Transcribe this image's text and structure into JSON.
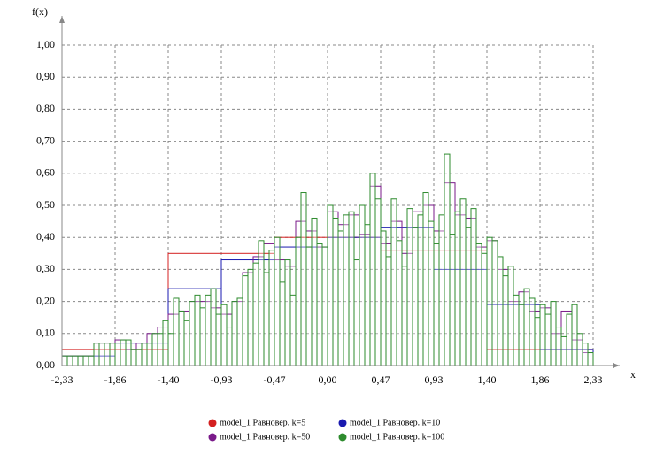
{
  "chart_data": {
    "type": "histogram",
    "y_label": "f(x)",
    "x_label": "x",
    "xlim": [
      -2.33,
      2.33
    ],
    "ylim": [
      0,
      1
    ],
    "xticks": [
      {
        "value": -2.33,
        "label": "-2,33"
      },
      {
        "value": -1.864,
        "label": "-1,86"
      },
      {
        "value": -1.398,
        "label": "-1,40"
      },
      {
        "value": -0.932,
        "label": "-0,93"
      },
      {
        "value": -0.466,
        "label": "-0,47"
      },
      {
        "value": 0,
        "label": "0,00"
      },
      {
        "value": 0.466,
        "label": "0,47"
      },
      {
        "value": 0.932,
        "label": "0,93"
      },
      {
        "value": 1.398,
        "label": "1,40"
      },
      {
        "value": 1.864,
        "label": "1,86"
      },
      {
        "value": 2.33,
        "label": "2,33"
      }
    ],
    "yticks": [
      {
        "value": 0,
        "label": "0,00"
      },
      {
        "value": 0.1,
        "label": "0,10"
      },
      {
        "value": 0.2,
        "label": "0,20"
      },
      {
        "value": 0.3,
        "label": "0,30"
      },
      {
        "value": 0.4,
        "label": "0,40"
      },
      {
        "value": 0.5,
        "label": "0,50"
      },
      {
        "value": 0.6,
        "label": "0,60"
      },
      {
        "value": 0.7,
        "label": "0,70"
      },
      {
        "value": 0.8,
        "label": "0,80"
      },
      {
        "value": 0.9,
        "label": "0,90"
      },
      {
        "value": 1,
        "label": "1,00"
      }
    ],
    "grid": true,
    "series": [
      {
        "name": "model_1 Равновер. k=5",
        "color": "#d42020",
        "bins": [
          -2.33,
          -1.398,
          -0.466,
          0.466,
          1.398,
          2.33
        ],
        "values": [
          0.05,
          0.35,
          0.4,
          0.36,
          0.05
        ]
      },
      {
        "name": "model_1 Равновер. k=10",
        "color": "#1a1ab0",
        "bins": [
          -2.33,
          -1.864,
          -1.398,
          -0.932,
          -0.466,
          0,
          0.466,
          0.932,
          1.398,
          1.864,
          2.33
        ],
        "values": [
          0.03,
          0.07,
          0.24,
          0.33,
          0.37,
          0.4,
          0.43,
          0.3,
          0.19,
          0.05
        ]
      },
      {
        "name": "model_1 Равновер. k=50",
        "color": "#7a1a8a",
        "bins": [
          -2.33,
          -2.2368,
          -2.1436,
          -2.0504,
          -1.9572,
          -1.864,
          -1.7708,
          -1.6776,
          -1.5844,
          -1.4912,
          -1.398,
          -1.3048,
          -1.2116,
          -1.1184,
          -1.0252,
          -0.932,
          -0.8388,
          -0.7456,
          -0.6524,
          -0.5592,
          -0.466,
          -0.3728,
          -0.2796,
          -0.1864,
          -0.0932,
          0,
          0.0932,
          0.1864,
          0.2796,
          0.3728,
          0.466,
          0.5592,
          0.6524,
          0.7456,
          0.8388,
          0.932,
          1.0252,
          1.1184,
          1.2116,
          1.3048,
          1.398,
          1.4912,
          1.5844,
          1.6776,
          1.7708,
          1.864,
          1.9572,
          2.0504,
          2.1436,
          2.2368,
          2.33
        ],
        "values": [
          0.03,
          0.03,
          0.03,
          0.07,
          0.07,
          0.08,
          0.05,
          0.07,
          0.1,
          0.12,
          0.16,
          0.17,
          0.2,
          0.2,
          0.18,
          0.16,
          0.2,
          0.29,
          0.34,
          0.38,
          0.33,
          0.31,
          0.45,
          0.42,
          0.37,
          0.48,
          0.44,
          0.47,
          0.41,
          0.56,
          0.38,
          0.45,
          0.35,
          0.48,
          0.5,
          0.42,
          0.57,
          0.47,
          0.46,
          0.37,
          0.39,
          0.3,
          0.2,
          0.23,
          0.17,
          0.18,
          0.1,
          0.17,
          0.08,
          0.04
        ]
      },
      {
        "name": "model_1 Равновер. k=100",
        "color": "#2e8b2e",
        "bins": [
          -2.33,
          -2.2834,
          -2.2368,
          -2.1902,
          -2.1436,
          -2.097,
          -2.0504,
          -2.0038,
          -1.9572,
          -1.9106,
          -1.864,
          -1.8174,
          -1.7708,
          -1.7242,
          -1.6776,
          -1.631,
          -1.5844,
          -1.5378,
          -1.4912,
          -1.4446,
          -1.398,
          -1.3514,
          -1.3048,
          -1.2582,
          -1.2116,
          -1.165,
          -1.1184,
          -1.0718,
          -1.0252,
          -0.9786,
          -0.932,
          -0.8854,
          -0.8388,
          -0.7922,
          -0.7456,
          -0.699,
          -0.6524,
          -0.6058,
          -0.5592,
          -0.5126,
          -0.466,
          -0.4194,
          -0.3728,
          -0.3262,
          -0.2796,
          -0.233,
          -0.1864,
          -0.1398,
          -0.0932,
          -0.0466,
          0,
          0.0466,
          0.0932,
          0.1398,
          0.1864,
          0.233,
          0.2796,
          0.3262,
          0.3728,
          0.4194,
          0.466,
          0.5126,
          0.5592,
          0.6058,
          0.6524,
          0.699,
          0.7456,
          0.7922,
          0.8388,
          0.8854,
          0.932,
          0.9786,
          1.0252,
          1.0718,
          1.1184,
          1.165,
          1.2116,
          1.2582,
          1.3048,
          1.3514,
          1.398,
          1.4446,
          1.4912,
          1.5378,
          1.5844,
          1.631,
          1.6776,
          1.7242,
          1.7708,
          1.8174,
          1.864,
          1.9106,
          1.9572,
          2.0038,
          2.0504,
          2.097,
          2.1436,
          2.1902,
          2.2368,
          2.2834,
          2.33
        ],
        "values": [
          0.03,
          0.03,
          0.03,
          0.03,
          0.03,
          0.03,
          0.07,
          0.07,
          0.07,
          0.07,
          0.07,
          0.08,
          0.08,
          0.05,
          0.05,
          0.07,
          0.07,
          0.1,
          0.1,
          0.14,
          0.1,
          0.21,
          0.17,
          0.14,
          0.2,
          0.22,
          0.18,
          0.22,
          0.24,
          0.16,
          0.19,
          0.12,
          0.2,
          0.21,
          0.28,
          0.3,
          0.32,
          0.39,
          0.29,
          0.36,
          0.4,
          0.26,
          0.33,
          0.22,
          0.4,
          0.54,
          0.37,
          0.46,
          0.38,
          0.37,
          0.5,
          0.46,
          0.42,
          0.47,
          0.48,
          0.33,
          0.5,
          0.44,
          0.6,
          0.52,
          0.42,
          0.34,
          0.52,
          0.39,
          0.31,
          0.49,
          0.43,
          0.47,
          0.54,
          0.45,
          0.38,
          0.47,
          0.66,
          0.41,
          0.48,
          0.52,
          0.43,
          0.49,
          0.38,
          0.35,
          0.4,
          0.39,
          0.34,
          0.28,
          0.31,
          0.22,
          0.19,
          0.24,
          0.21,
          0.15,
          0.19,
          0.16,
          0.2,
          0.12,
          0.09,
          0.16,
          0.19,
          0.1,
          0.07,
          0.04
        ]
      }
    ]
  }
}
